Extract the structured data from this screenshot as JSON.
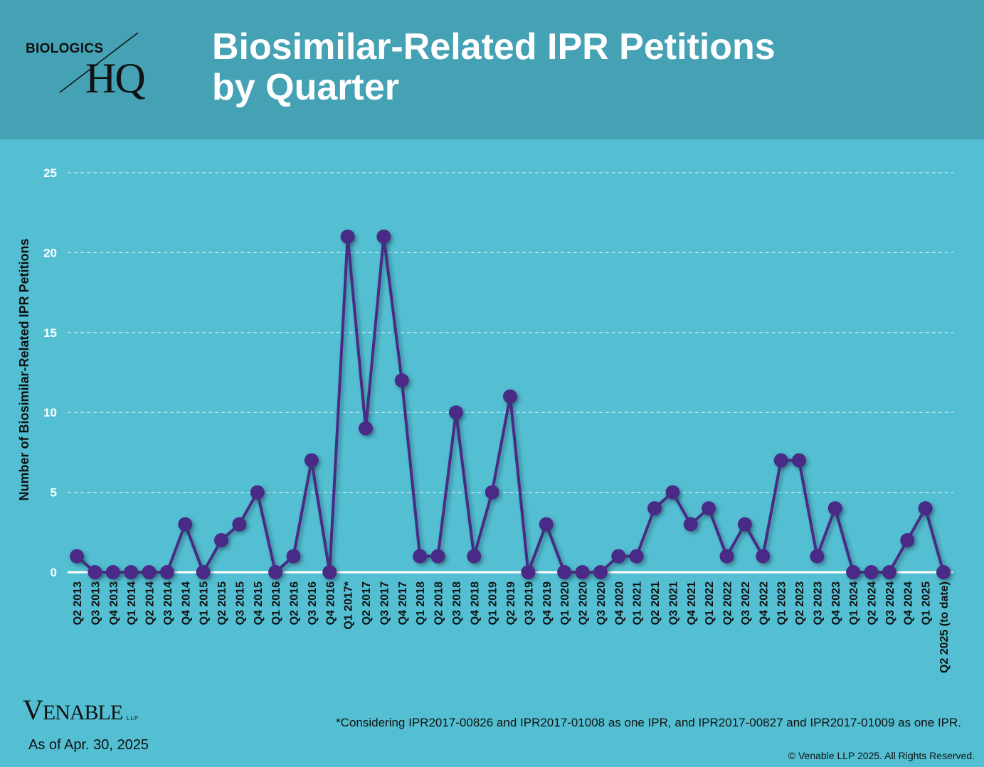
{
  "header": {
    "logo_top": "BIOLOGICS",
    "logo_bottom": "HQ",
    "title_line1": "Biosimilar-Related IPR Petitions",
    "title_line2": "by Quarter"
  },
  "footer": {
    "logo_text": "Venable",
    "logo_suffix": "LLP",
    "as_of": "As of Apr. 30, 2025",
    "footnote": "*Considering IPR2017-00826 and IPR2017-01008 as one IPR, and IPR2017-00827 and IPR2017-01009 as one IPR.",
    "copyright": "© Venable LLP 2025. All Rights Reserved."
  },
  "colors": {
    "header_bg": "#45a1b4",
    "body_bg": "#54bfd2",
    "series": "#4a2a86",
    "axis_text": "#ffffff"
  },
  "chart_data": {
    "type": "line",
    "ylabel": "Number of Biosimilar-Related IPR Petitions",
    "ylim": [
      0,
      25
    ],
    "yticks": [
      0,
      5,
      10,
      15,
      20,
      25
    ],
    "grid": "horizontal dashed",
    "categories": [
      "Q2 2013",
      "Q3 2013",
      "Q4 2013",
      "Q1 2014",
      "Q2 2014",
      "Q3 2014",
      "Q4 2014",
      "Q1 2015",
      "Q2 2015",
      "Q3 2015",
      "Q4 2015",
      "Q1 2016",
      "Q2 2016",
      "Q3 2016",
      "Q4 2016",
      "Q1 2017*",
      "Q2 2017",
      "Q3 2017",
      "Q4 2017",
      "Q1 2018",
      "Q2 2018",
      "Q3 2018",
      "Q4 2018",
      "Q1 2019",
      "Q2 2019",
      "Q3 2019",
      "Q4 2019",
      "Q1 2020",
      "Q2 2020",
      "Q3 2020",
      "Q4 2020",
      "Q1 2021",
      "Q2 2021",
      "Q3 2021",
      "Q4 2021",
      "Q1 2022",
      "Q2 2022",
      "Q3 2022",
      "Q4 2022",
      "Q1 2023",
      "Q2 2023",
      "Q3 2023",
      "Q4 2023",
      "Q1 2024",
      "Q2 2024",
      "Q3 2024",
      "Q4 2024",
      "Q1 2025",
      "Q2 2025 (to date)"
    ],
    "values": [
      1,
      0,
      0,
      0,
      0,
      0,
      3,
      0,
      2,
      3,
      5,
      0,
      1,
      7,
      0,
      21,
      9,
      21,
      12,
      1,
      1,
      10,
      1,
      5,
      11,
      0,
      3,
      0,
      0,
      0,
      1,
      1,
      4,
      5,
      3,
      4,
      1,
      3,
      1,
      7,
      7,
      1,
      4,
      0,
      0,
      0,
      2,
      4,
      0
    ]
  }
}
